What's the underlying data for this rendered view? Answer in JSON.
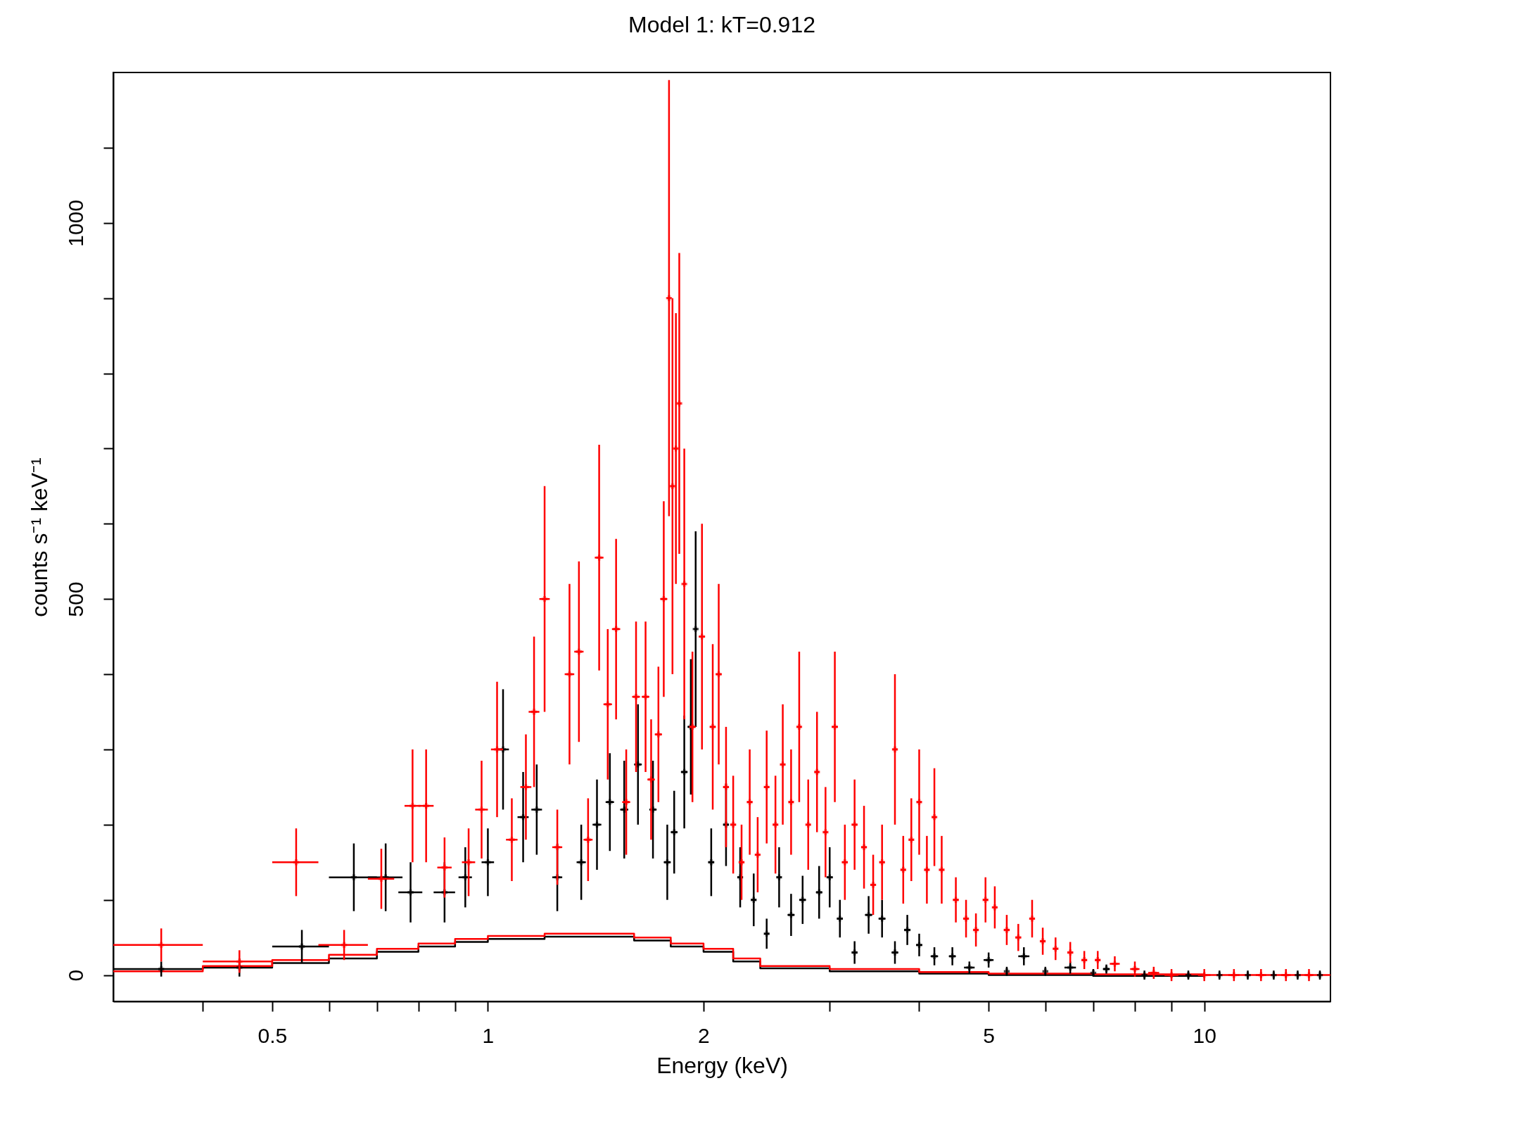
{
  "chart_data": {
    "type": "scatter",
    "title": "Model 1: kT=0.912",
    "xlabel": "Energy (keV)",
    "ylabel": "counts s⁻¹ keV⁻¹",
    "log": "x",
    "grid": false,
    "marker": "cross",
    "xlim": [
      0.3,
      15
    ],
    "ylim": [
      -35,
      1200
    ],
    "xticks": [
      {
        "value": 0.4,
        "label": null
      },
      0.5,
      {
        "value": 0.6,
        "label": null
      },
      {
        "value": 0.7,
        "label": null
      },
      {
        "value": 0.8,
        "label": null
      },
      {
        "value": 0.9,
        "label": null
      },
      1,
      2,
      {
        "value": 3,
        "label": null
      },
      {
        "value": 4,
        "label": null
      },
      5,
      {
        "value": 6,
        "label": null
      },
      {
        "value": 7,
        "label": null
      },
      {
        "value": 8,
        "label": null
      },
      {
        "value": 9,
        "label": null
      },
      10
    ],
    "yticks": [
      0,
      {
        "value": 100,
        "label": null
      },
      {
        "value": 200,
        "label": null
      },
      {
        "value": 300,
        "label": null
      },
      {
        "value": 400,
        "label": null
      },
      500,
      {
        "value": 600,
        "label": null
      },
      {
        "value": 700,
        "label": null
      },
      {
        "value": 800,
        "label": null
      },
      {
        "value": 900,
        "label": null
      },
      1000,
      {
        "value": 1100,
        "label": null
      }
    ],
    "series": [
      {
        "type": "step",
        "marker": "none",
        "color": "#000000",
        "x": [
          0.3,
          0.4,
          0.5,
          0.6,
          0.7,
          0.8,
          0.9,
          1.0,
          1.2,
          1.4,
          1.6,
          1.8,
          2.0,
          2.2,
          2.4,
          3.0,
          4.0,
          5.0,
          7.0,
          10.0
        ],
        "values": [
          8,
          10,
          16,
          22,
          31,
          38,
          44,
          48,
          51,
          51,
          46,
          38,
          31,
          18,
          9,
          5,
          2,
          0,
          -1,
          -2
        ]
      },
      {
        "type": "step",
        "marker": "none",
        "color": "#ff0000",
        "x": [
          0.3,
          0.4,
          0.5,
          0.6,
          0.7,
          0.8,
          0.9,
          1.0,
          1.2,
          1.4,
          1.6,
          1.8,
          2.0,
          2.2,
          2.4,
          3.0,
          4.0,
          5.0,
          7.0,
          10.0,
          15.0
        ],
        "values": [
          5,
          12,
          20,
          27,
          35,
          42,
          48,
          52,
          55,
          55,
          50,
          42,
          35,
          22,
          12,
          8,
          4,
          2,
          1,
          0,
          0
        ]
      },
      {
        "color": "#000000",
        "x": [
          0.35,
          0.45,
          0.55,
          0.65,
          0.72,
          0.78,
          0.87,
          0.93,
          1.0,
          1.05,
          1.12,
          1.17,
          1.25,
          1.35,
          1.42,
          1.48,
          1.55,
          1.62,
          1.7,
          1.78,
          1.82,
          1.88,
          1.92,
          1.95,
          2.05,
          2.15,
          2.25,
          2.35,
          2.45,
          2.55,
          2.65,
          2.75,
          2.9,
          3.0,
          3.1,
          3.25,
          3.4,
          3.55,
          3.7,
          3.85,
          4.0,
          4.2,
          4.45,
          4.7,
          5.0,
          5.3,
          5.6,
          6.0,
          6.5,
          7.0,
          7.3,
          8.25,
          9.5,
          10.5,
          11.5,
          12.5,
          13.5,
          14.5
        ],
        "values": [
          8,
          10,
          38,
          130,
          130,
          110,
          110,
          130,
          150,
          300,
          210,
          220,
          130,
          150,
          200,
          230,
          220,
          280,
          220,
          150,
          190,
          270,
          330,
          460,
          150,
          200,
          130,
          100,
          55,
          130,
          80,
          100,
          110,
          130,
          75,
          30,
          80,
          75,
          30,
          60,
          40,
          25,
          25,
          10,
          20,
          5,
          25,
          5,
          10,
          3,
          8,
          0,
          0,
          0,
          0,
          0,
          0,
          0
        ],
        "errors": [
          10,
          12,
          22,
          45,
          45,
          40,
          40,
          40,
          45,
          80,
          60,
          60,
          45,
          50,
          60,
          65,
          65,
          80,
          65,
          50,
          55,
          75,
          90,
          130,
          45,
          55,
          40,
          35,
          20,
          40,
          28,
          32,
          35,
          40,
          25,
          15,
          25,
          25,
          15,
          20,
          15,
          12,
          12,
          8,
          10,
          6,
          12,
          6,
          8,
          5,
          6,
          6,
          6,
          6,
          6,
          6,
          6,
          6
        ],
        "xerrors": [
          null,
          null,
          0.05,
          0.05,
          0.04,
          0.03,
          0.03,
          0.02,
          0.02,
          0.02,
          0.02,
          0.02,
          0.02,
          0.02,
          0.02,
          0.02,
          0.02,
          0.02,
          0.02,
          0.02,
          0.02,
          0.02,
          0.02,
          0.01,
          0.02,
          0.02,
          0.02,
          0.02,
          0.02,
          0.02,
          0.03,
          0.03,
          0.03,
          0.03,
          0.03,
          0.03,
          0.04,
          0.04,
          0.04,
          0.04,
          0.04,
          0.05,
          0.05,
          0.08,
          0.08,
          null,
          0.1,
          null,
          0.12,
          null,
          0.08,
          null,
          null,
          null,
          null,
          null,
          null,
          null
        ]
      },
      {
        "color": "#ff0000",
        "x": [
          0.35,
          0.45,
          0.54,
          0.63,
          0.71,
          0.785,
          0.82,
          0.87,
          0.94,
          0.98,
          1.03,
          1.08,
          1.13,
          1.16,
          1.2,
          1.25,
          1.3,
          1.34,
          1.38,
          1.43,
          1.47,
          1.51,
          1.56,
          1.61,
          1.66,
          1.69,
          1.73,
          1.76,
          1.79,
          1.81,
          1.83,
          1.85,
          1.88,
          1.93,
          1.99,
          2.06,
          2.1,
          2.15,
          2.2,
          2.26,
          2.32,
          2.38,
          2.45,
          2.52,
          2.58,
          2.65,
          2.72,
          2.8,
          2.88,
          2.96,
          3.05,
          3.15,
          3.25,
          3.35,
          3.45,
          3.55,
          3.7,
          3.8,
          3.9,
          4.0,
          4.1,
          4.2,
          4.3,
          4.5,
          4.65,
          4.8,
          4.95,
          5.1,
          5.3,
          5.5,
          5.75,
          5.95,
          6.2,
          6.5,
          6.8,
          7.1,
          7.5,
          8.0,
          8.5,
          9.0,
          10.0,
          11.0,
          12.0,
          13.0,
          14.0
        ],
        "values": [
          40,
          18,
          150,
          40,
          128,
          225,
          225,
          143,
          150,
          220,
          300,
          180,
          250,
          350,
          500,
          170,
          400,
          430,
          180,
          555,
          360,
          460,
          230,
          370,
          370,
          260,
          320,
          500,
          900,
          650,
          700,
          760,
          520,
          330,
          450,
          330,
          400,
          250,
          200,
          150,
          230,
          160,
          250,
          200,
          280,
          230,
          330,
          200,
          270,
          190,
          330,
          150,
          200,
          170,
          120,
          150,
          300,
          140,
          180,
          230,
          140,
          210,
          140,
          100,
          75,
          60,
          100,
          90,
          60,
          50,
          75,
          45,
          35,
          30,
          20,
          20,
          15,
          8,
          3,
          0,
          0,
          0,
          0,
          0,
          0
        ],
        "errors": [
          22,
          15,
          45,
          20,
          40,
          75,
          75,
          40,
          45,
          65,
          90,
          55,
          70,
          100,
          150,
          50,
          120,
          120,
          55,
          150,
          100,
          120,
          70,
          100,
          100,
          80,
          90,
          130,
          290,
          250,
          180,
          200,
          180,
          100,
          150,
          110,
          120,
          80,
          65,
          50,
          70,
          50,
          75,
          65,
          80,
          70,
          100,
          60,
          80,
          60,
          100,
          50,
          60,
          55,
          40,
          50,
          100,
          45,
          55,
          70,
          45,
          65,
          45,
          30,
          25,
          22,
          30,
          28,
          20,
          18,
          25,
          18,
          15,
          14,
          12,
          12,
          10,
          10,
          8,
          8,
          8,
          8,
          8,
          8,
          8
        ],
        "xerrors": [
          0.05,
          0.05,
          0.04,
          0.05,
          0.03,
          0.02,
          0.02,
          0.02,
          0.02,
          0.02,
          0.02,
          0.02,
          0.02,
          0.02,
          0.02,
          0.02,
          0.02,
          0.02,
          0.02,
          0.02,
          0.02,
          0.02,
          0.02,
          0.02,
          0.02,
          0.02,
          0.02,
          0.02,
          0.01,
          0.01,
          0.01,
          0.01,
          0.01,
          0.02,
          0.02,
          0.02,
          0.02,
          0.02,
          0.02,
          0.02,
          0.02,
          0.02,
          0.02,
          0.02,
          0.02,
          0.02,
          0.02,
          0.02,
          0.02,
          0.02,
          0.03,
          0.03,
          0.03,
          0.03,
          0.03,
          0.03,
          0.03,
          0.03,
          0.03,
          0.03,
          0.03,
          0.03,
          0.03,
          0.04,
          0.04,
          0.04,
          0.04,
          0.04,
          0.05,
          0.05,
          0.05,
          0.05,
          0.05,
          0.06,
          0.06,
          0.06,
          0.12,
          0.12,
          0.15,
          0.2,
          0.2,
          0.2,
          0.2,
          0.2,
          0.2
        ]
      }
    ]
  }
}
